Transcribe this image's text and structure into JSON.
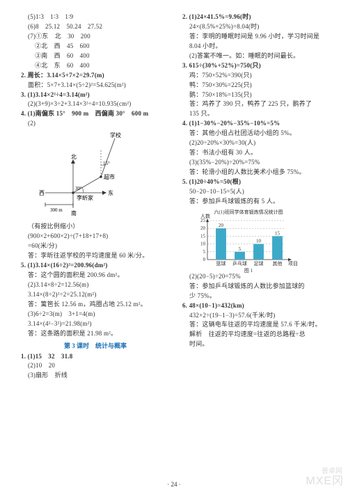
{
  "page_number": "· 24 ·",
  "watermark_main": "MXE冈",
  "watermark_sub": "普卓网",
  "left": {
    "l1": "(5)1∶3　1∶3　1∶9",
    "l2": "(6)8　25.12　50.24　27.52",
    "l3": "(7)①东　北　30　200",
    "l4": "②北　西　45　600",
    "l5": "③南　西　60　400",
    "l6": "④北　东　60　400",
    "q2a": "2. 周长：3.14×5+7×2=29.7(m)",
    "q2b": "面积：5×7+3.14×(5÷2)²=54.625(m²)",
    "q3a": "3. (1)3.14×2²÷4=3.14(m²)",
    "q3b": "(2)(3+9)×3÷2+3.14×3²÷4=10.935(cm²)",
    "q4a": "4. (1)南偏东 15°　900 m　西偏南 30°　600 m",
    "q4b": "(2)",
    "diagram": {
      "bg": "#ffffff",
      "stroke": "#333333",
      "labels": {
        "school": "学校",
        "n": "北",
        "s": "南",
        "e": "东",
        "w": "西",
        "market": "超市",
        "home": "李昕家",
        "a15": "15°",
        "a30": "30°",
        "d300": "300 m"
      }
    },
    "q4c": "（有按比例缩小）",
    "q4d": "(900×2+600×2)÷(7+18+17+8)",
    "q4e": "=60(米/分)",
    "q4f": "答：李昕往返学校的平均速度是 60 米/分。",
    "q5a": "5. (1)3.14×(16÷2)²=200.96(dm²)",
    "q5b": "答：这个圆的面积是 200.96 dm²。",
    "q5c": "(2)3.14×8÷2=12.56(m)",
    "q5d": "3.14×(8÷2)²÷2=25.12(m²)",
    "q5e": "答：篱笆长 12.56 m，鸡圈占地 25.12 m²。",
    "q5f": "(3)6÷2=3(m)　3+1=4(m)",
    "q5g": "3.14×(4²−3²)=21.98(m²)",
    "q5h": "答：这条路的面积是 21.98 m²。",
    "section_title": "第 3 课时　统计与概率",
    "s1a": "1. (1)15　32　31.8",
    "s1b": "(2)10　20",
    "s1c": "(3)扇形　折线"
  },
  "right": {
    "q2a": "2. (1)24×41.5%=9.96(时)",
    "q2b": "24×(8.5%+25%)=8.04(时)",
    "q2c": "答：李明的睡眠时间是 9.96 小时，学习时间是",
    "q2d": "8.04 小时。",
    "q2e": "(2)答案不唯一。如：睡眠的时间最长。",
    "q3a": "3. 615÷(30%+52%)=750(只)",
    "q3b": "鸡：750×52%=390(只)",
    "q3c": "鸭：750×30%=225(只)",
    "q3d": "鹅：750×18%=135(只)",
    "q3e": "答：鸡养了 390 只，鸭养了 225 只，鹅养了",
    "q3f": "135 只。",
    "q4a": "4. (1)1−30%−20%−35%−10%=5%",
    "q4b": "答：其他小组占社团活动小组的 5%。",
    "q4c": "(2)20÷20%×30%=30(人)",
    "q4d": "答：书法小组有 30 人。",
    "q4e": "(3)(35%−20%)÷20%=75%",
    "q4f": "答：轮滑小组的人数比美术小组多 75%。",
    "q5a": "5. (1)20÷40%=50(根)",
    "q5b": "50−20−10−15=5(人)",
    "q5c": "答：参加乒乓球锻炼的有 5 人。",
    "chart": {
      "title": "六(1)班同学体育锻炼情况统计图",
      "ylabel": "人数",
      "xlabels": [
        "篮球",
        "乒乓球",
        "足球",
        "其他",
        "项目"
      ],
      "figlabel": "图 1",
      "bars": [
        {
          "label": "20",
          "value": 20,
          "color": "#3da9c9"
        },
        {
          "label": "5",
          "value": 5,
          "color": "#3da9c9"
        },
        {
          "label": "10",
          "value": 10,
          "color": "#3da9c9"
        },
        {
          "label": "15",
          "value": 15,
          "color": "#3da9c9"
        }
      ],
      "ymax": 25,
      "ytick": 5,
      "axis_color": "#333333",
      "label_fontsize": 7
    },
    "q5d": "(2)(20−5)÷20=75%",
    "q5e": "答：参加乒乓球锻炼的人数比参加篮球的",
    "q5f": "少 75%。",
    "q6a": "6. 48×(10−1)=432(km)",
    "q6b": "432×2÷(19−1−3)=57.6(千米/时)",
    "q6c": "答：这辆电车往返的平均速度是 57.6 千米/时。",
    "q6d": "解析　往返的平均速度=往返的总路程÷总",
    "q6e": "时间。"
  }
}
